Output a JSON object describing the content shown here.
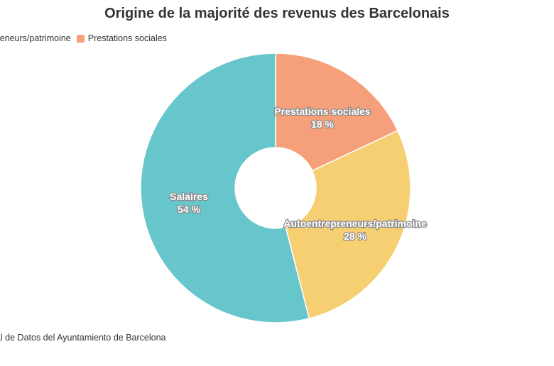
{
  "title": "Origine de la majorité des revenus des Barcelonais",
  "source": "cipal de Datos del Ayuntamiento de Barcelona",
  "legend": [
    {
      "label": "trepreneurs/patrimoine",
      "color": "#f6cf72",
      "swatch": false
    },
    {
      "label": "Prestations sociales",
      "color": "#f5a07a",
      "swatch": true
    }
  ],
  "chart_data": {
    "type": "pie",
    "title": "Origine de la majorité des revenus des Barcelonais",
    "donut": true,
    "start_angle_deg": 0,
    "direction": "clockwise",
    "slices": [
      {
        "label": "Prestations sociales",
        "value": 18,
        "display": "18 %",
        "color": "#f5a07a"
      },
      {
        "label": "Autoentrepreneurs/patrimoine",
        "value": 28,
        "display": "28 %",
        "color": "#f6cf72"
      },
      {
        "label": "Salaires",
        "value": 54,
        "display": "54 %",
        "color": "#67c5cc"
      }
    ]
  }
}
